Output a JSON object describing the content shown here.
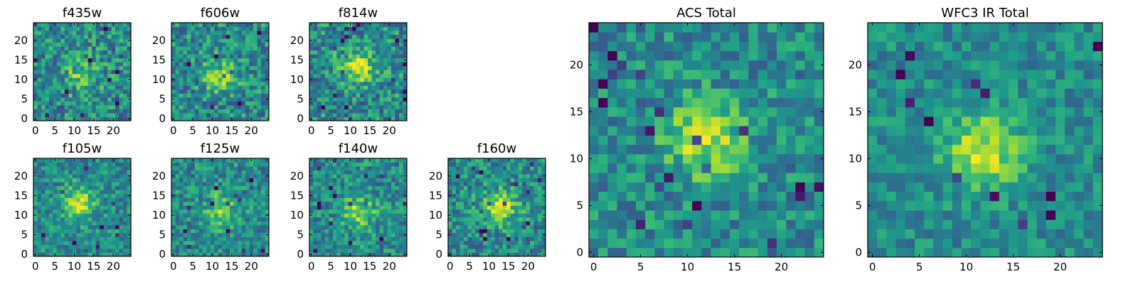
{
  "chart_data": [
    {
      "type": "heatmap",
      "title": "f435w",
      "xticks": [
        0,
        5,
        10,
        15,
        20
      ],
      "yticks": [
        0,
        5,
        10,
        15,
        20
      ],
      "xlim": [
        -0.5,
        24.5
      ],
      "ylim": [
        -0.5,
        24.5
      ],
      "colormap": "viridis",
      "grid": false,
      "blob_center": [
        12,
        11
      ],
      "blob_amplitude": 0.25,
      "noise": 0.25
    },
    {
      "type": "heatmap",
      "title": "f606w",
      "xticks": [
        0,
        5,
        10,
        15,
        20
      ],
      "yticks": [
        0,
        5,
        10,
        15,
        20
      ],
      "xlim": [
        -0.5,
        24.5
      ],
      "ylim": [
        -0.5,
        24.5
      ],
      "colormap": "viridis",
      "grid": false,
      "blob_center": [
        12,
        11
      ],
      "blob_amplitude": 0.3,
      "noise": 0.24
    },
    {
      "type": "heatmap",
      "title": "f814w",
      "xticks": [
        0,
        5,
        10,
        15,
        20
      ],
      "yticks": [
        0,
        5,
        10,
        15,
        20
      ],
      "xlim": [
        -0.5,
        24.5
      ],
      "ylim": [
        -0.5,
        24.5
      ],
      "colormap": "viridis",
      "grid": false,
      "blob_center": [
        12,
        13
      ],
      "blob_amplitude": 0.4,
      "noise": 0.25
    },
    {
      "type": "heatmap",
      "title": "f105w",
      "xticks": [
        0,
        5,
        10,
        15,
        20
      ],
      "yticks": [
        0,
        5,
        10,
        15,
        20
      ],
      "xlim": [
        -0.5,
        24.5
      ],
      "ylim": [
        -0.5,
        24.5
      ],
      "colormap": "viridis",
      "grid": false,
      "blob_center": [
        11,
        13
      ],
      "blob_amplitude": 0.38,
      "noise": 0.2
    },
    {
      "type": "heatmap",
      "title": "f125w",
      "xticks": [
        0,
        5,
        10,
        15,
        20
      ],
      "yticks": [
        0,
        5,
        10,
        15,
        20
      ],
      "xlim": [
        -0.5,
        24.5
      ],
      "ylim": [
        -0.5,
        24.5
      ],
      "colormap": "viridis",
      "grid": false,
      "blob_center": [
        12,
        11
      ],
      "blob_amplitude": 0.32,
      "noise": 0.21
    },
    {
      "type": "heatmap",
      "title": "f140w",
      "xticks": [
        0,
        5,
        10,
        15,
        20
      ],
      "yticks": [
        0,
        5,
        10,
        15,
        20
      ],
      "xlim": [
        -0.5,
        24.5
      ],
      "ylim": [
        -0.5,
        24.5
      ],
      "colormap": "viridis",
      "grid": false,
      "blob_center": [
        12,
        11
      ],
      "blob_amplitude": 0.35,
      "noise": 0.21
    },
    {
      "type": "heatmap",
      "title": "f160w",
      "xticks": [
        0,
        5,
        10,
        15,
        20
      ],
      "yticks": [
        0,
        5,
        10,
        15,
        20
      ],
      "xlim": [
        -0.5,
        24.5
      ],
      "ylim": [
        -0.5,
        24.5
      ],
      "colormap": "viridis",
      "grid": false,
      "blob_center": [
        13,
        12
      ],
      "blob_amplitude": 0.42,
      "noise": 0.22
    },
    {
      "type": "heatmap",
      "title": "ACS Total",
      "xticks": [
        0,
        5,
        10,
        15,
        20
      ],
      "yticks": [
        0,
        5,
        10,
        15,
        20
      ],
      "xlim": [
        -0.5,
        24.5
      ],
      "ylim": [
        -0.5,
        24.5
      ],
      "colormap": "viridis",
      "grid": false,
      "blob_center": [
        12,
        12
      ],
      "blob_amplitude": 0.4,
      "noise": 0.2
    },
    {
      "type": "heatmap",
      "title": "WFC3 IR Total",
      "xticks": [
        0,
        5,
        10,
        15,
        20
      ],
      "yticks": [
        0,
        5,
        10,
        15,
        20
      ],
      "xlim": [
        -0.5,
        24.5
      ],
      "ylim": [
        -0.5,
        24.5
      ],
      "colormap": "viridis",
      "grid": false,
      "blob_center": [
        12,
        11
      ],
      "blob_amplitude": 0.42,
      "noise": 0.16
    }
  ]
}
